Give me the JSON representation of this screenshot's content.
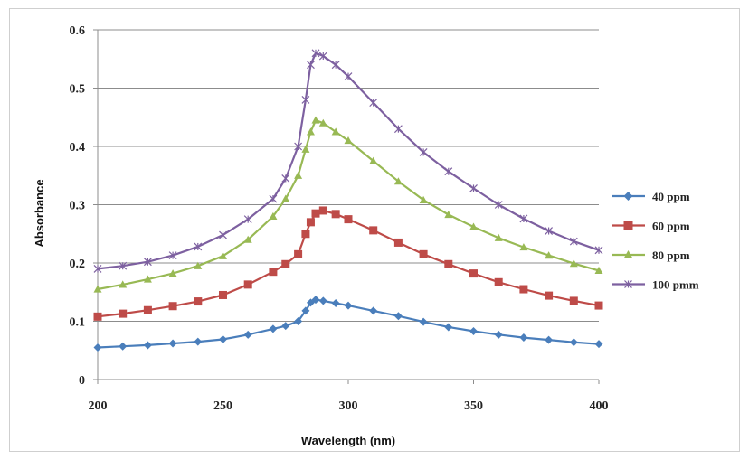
{
  "chart_data": {
    "type": "line",
    "title": "",
    "xlabel": "Wavelength (nm)",
    "ylabel": "Absorbance",
    "xlim": [
      200,
      400
    ],
    "ylim": [
      0,
      0.6
    ],
    "x_ticks": [
      "200",
      "250",
      "300",
      "350",
      "400"
    ],
    "y_ticks": [
      "0",
      "0.1",
      "0.2",
      "0.3",
      "0.4",
      "0.5",
      "0.6"
    ],
    "grid": "horizontal",
    "legend_position": "right",
    "x": [
      200,
      210,
      220,
      230,
      240,
      250,
      260,
      270,
      275,
      280,
      283,
      285,
      287,
      290,
      295,
      300,
      310,
      320,
      330,
      340,
      350,
      360,
      370,
      380,
      390,
      400
    ],
    "series": [
      {
        "name": "40 ppm",
        "color": "#4a7ebb",
        "marker": "diamond",
        "values": [
          0.055,
          0.057,
          0.059,
          0.062,
          0.065,
          0.069,
          0.077,
          0.087,
          0.092,
          0.1,
          0.118,
          0.132,
          0.137,
          0.135,
          0.131,
          0.127,
          0.118,
          0.109,
          0.099,
          0.09,
          0.083,
          0.077,
          0.072,
          0.068,
          0.064,
          0.061
        ]
      },
      {
        "name": "60 ppm",
        "color": "#be4b48",
        "marker": "square",
        "values": [
          0.108,
          0.113,
          0.119,
          0.126,
          0.134,
          0.145,
          0.163,
          0.185,
          0.198,
          0.215,
          0.25,
          0.27,
          0.285,
          0.29,
          0.284,
          0.275,
          0.256,
          0.235,
          0.215,
          0.198,
          0.182,
          0.167,
          0.155,
          0.144,
          0.135,
          0.127
        ]
      },
      {
        "name": "80 ppm",
        "color": "#98b954",
        "marker": "triangle",
        "values": [
          0.155,
          0.163,
          0.172,
          0.182,
          0.195,
          0.212,
          0.24,
          0.28,
          0.31,
          0.35,
          0.395,
          0.425,
          0.445,
          0.44,
          0.425,
          0.41,
          0.375,
          0.34,
          0.308,
          0.283,
          0.262,
          0.243,
          0.227,
          0.213,
          0.199,
          0.187
        ]
      },
      {
        "name": "100 pmm",
        "color": "#7d60a0",
        "marker": "x",
        "values": [
          0.19,
          0.195,
          0.202,
          0.213,
          0.228,
          0.248,
          0.275,
          0.31,
          0.345,
          0.4,
          0.48,
          0.54,
          0.56,
          0.555,
          0.54,
          0.52,
          0.475,
          0.43,
          0.39,
          0.357,
          0.328,
          0.3,
          0.276,
          0.255,
          0.237,
          0.222
        ]
      }
    ]
  }
}
